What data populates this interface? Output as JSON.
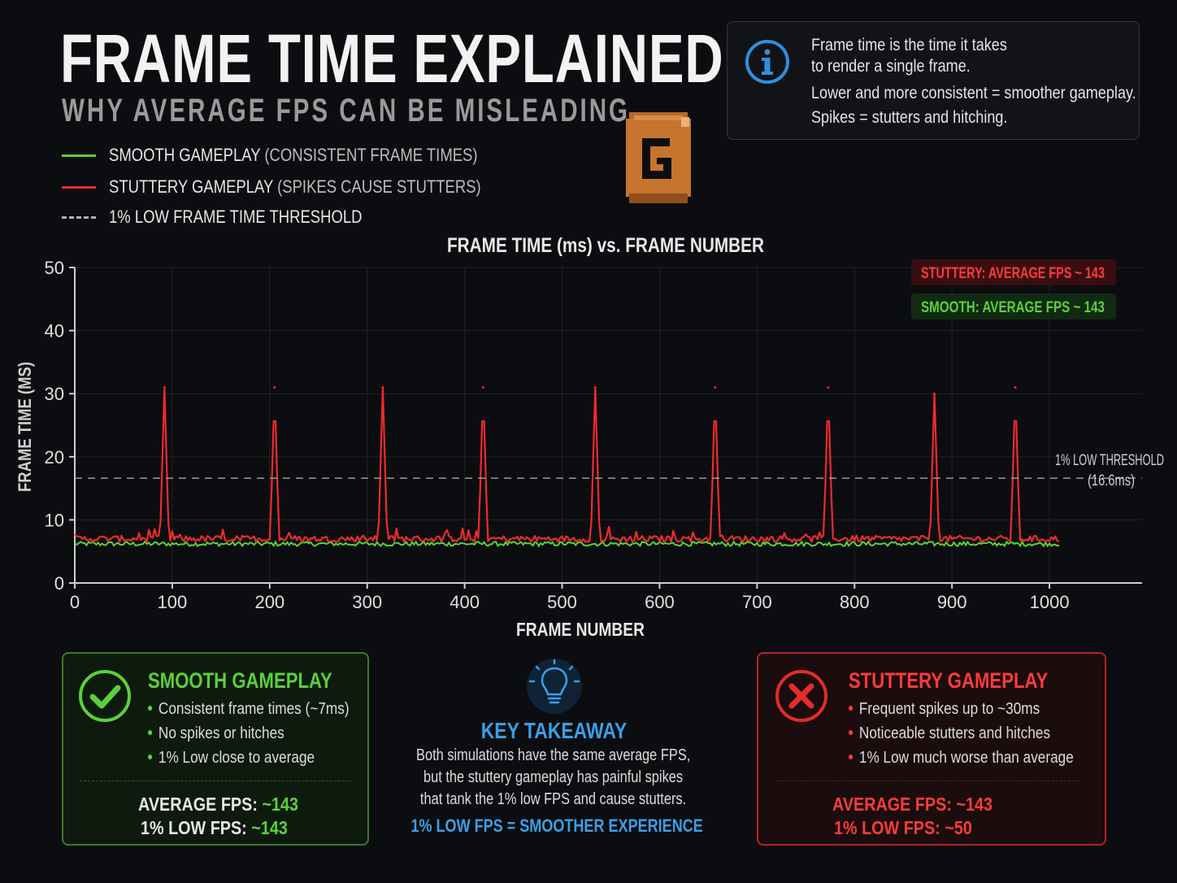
{
  "header": {
    "title": "FRAME TIME EXPLAINED",
    "subtitle": "WHY AVERAGE FPS CAN BE MISLEADING"
  },
  "legend": [
    {
      "label": "SMOOTH GAMEPLAY",
      "note": "(CONSISTENT FRAME TIMES)",
      "color": "#5ad13a",
      "style": "solid"
    },
    {
      "label": "STUTTERY GAMEPLAY",
      "note": "(SPIKES CAUSE STUTTERS)",
      "color": "#ee2b2b",
      "style": "solid"
    },
    {
      "label": "1% LOW FRAME TIME THRESHOLD",
      "note": "",
      "color": "#9a9a9a",
      "style": "dashed"
    }
  ],
  "logo": {
    "icon": "pixel-g-logo",
    "letter": "G",
    "color": "#c7742e"
  },
  "info_box": {
    "icon": "info-icon",
    "lines": [
      "Frame time is the time it takes",
      "to render a single frame.",
      "Lower and more consistent = smoother gameplay.",
      "Spikes = stutters and hitching."
    ]
  },
  "chart_data": {
    "type": "line",
    "title": "FRAME TIME (ms) vs. FRAME NUMBER",
    "xlabel": "FRAME NUMBER",
    "ylabel": "FRAME TIME (MS)",
    "xlim": [
      0,
      1095
    ],
    "ylim": [
      0,
      50
    ],
    "xticks": [
      0,
      100,
      200,
      300,
      400,
      500,
      600,
      700,
      800,
      900,
      1000
    ],
    "yticks": [
      0,
      10,
      20,
      30,
      40,
      50
    ],
    "grid": true,
    "series": [
      {
        "name": "SMOOTH GAMEPLAY",
        "color": "#5ad13a",
        "baseline_ms": 6.2,
        "x_range": [
          0,
          1010
        ]
      },
      {
        "name": "STUTTERY GAMEPLAY",
        "color": "#ee2b2b",
        "baseline_ms": 7.0,
        "x_range": [
          0,
          1010
        ],
        "spikes": [
          {
            "x": 92,
            "y": 31
          },
          {
            "x": 205,
            "y": 31
          },
          {
            "x": 316,
            "y": 31
          },
          {
            "x": 419,
            "y": 31
          },
          {
            "x": 534,
            "y": 31
          },
          {
            "x": 657,
            "y": 31
          },
          {
            "x": 773,
            "y": 31
          },
          {
            "x": 882,
            "y": 30
          },
          {
            "x": 965,
            "y": 31
          }
        ]
      }
    ],
    "threshold": {
      "y": 16.6,
      "label": "1% LOW THRESHOLD",
      "sublabel": "(16.6ms)",
      "color": "#9a9a9a"
    },
    "annotations": [
      {
        "text": "STUTTERY: AVERAGE FPS ~ 143",
        "color": "#ff3b3b",
        "bg": "#3a0e10"
      },
      {
        "text": "SMOOTH: AVERAGE FPS ~ 143",
        "color": "#5ad13a",
        "bg": "#112a12"
      }
    ]
  },
  "smooth_card": {
    "icon": "checkmark-icon",
    "title": "SMOOTH GAMEPLAY",
    "bullets": [
      "Consistent frame times (~7ms)",
      "No spikes or hitches",
      "1% Low close to average"
    ],
    "stats": [
      {
        "label": "AVERAGE FPS:",
        "value": "~143"
      },
      {
        "label": "1% LOW FPS:",
        "value": "~143"
      }
    ],
    "color": "#5ad13a"
  },
  "takeaway": {
    "icon": "lightbulb-icon",
    "title": "KEY TAKEAWAY",
    "lines": [
      "Both simulations have the same average FPS,",
      "but the stuttery gameplay has painful spikes",
      "that tank the 1% low FPS and cause stutters."
    ],
    "cta": "1% LOW FPS = SMOOTHER EXPERIENCE",
    "color": "#3a9fe6"
  },
  "stutter_card": {
    "icon": "x-mark-icon",
    "title": "STUTTERY GAMEPLAY",
    "bullets": [
      "Frequent spikes up to ~30ms",
      "Noticeable stutters and hitches",
      "1% Low much worse than average"
    ],
    "stats": [
      {
        "label": "AVERAGE FPS:",
        "value": "~143"
      },
      {
        "label": "1% LOW FPS:",
        "value": "~50"
      }
    ],
    "color": "#ff3b3b"
  }
}
